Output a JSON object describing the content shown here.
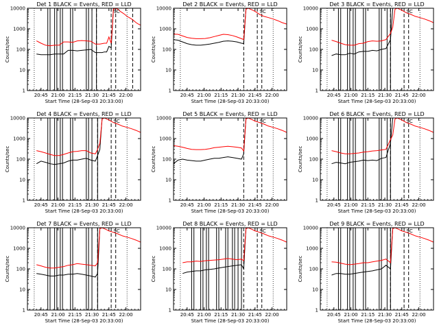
{
  "colors": {
    "events": "#000000",
    "lld": "#ff0000",
    "background": "#ffffff"
  },
  "shared": {
    "ylabel": "Counts/sec",
    "xlabel": "Start Time (28-Sep-03 20:33:00)",
    "x_tick_labels": [
      "20:45",
      "21:00",
      "21:15",
      "21:30",
      "21:45",
      "22:00"
    ],
    "y_tick_labels": [
      "1",
      "10",
      "100",
      "1000",
      "10000"
    ],
    "legend_mark": "SC"
  },
  "chart_data": [
    {
      "type": "line",
      "title": "Det 1 BLACK = Events, RED = LLD",
      "xlabel": "Start Time (28-Sep-03 20:33:00)",
      "ylabel": "Counts/sec",
      "x_unit": "minutes after 20:33:00",
      "xlim": [
        0,
        100
      ],
      "ylim": [
        1,
        10000
      ],
      "log_y": true,
      "x": [
        8,
        12,
        16,
        20,
        24,
        28,
        32,
        36,
        40,
        44,
        48,
        52,
        56,
        60,
        64,
        66,
        68,
        70,
        72,
        74,
        76,
        78,
        80,
        82,
        84,
        86,
        88,
        90,
        92,
        94,
        96,
        98,
        100
      ],
      "series": [
        {
          "name": "Events",
          "color": "#000000",
          "values": [
            60,
            55,
            55,
            55,
            60,
            60,
            60,
            90,
            90,
            85,
            90,
            95,
            100,
            70,
            70,
            70,
            75,
            75,
            140,
            120,
            10000,
            null,
            null,
            null,
            null,
            null,
            null,
            null,
            null,
            null,
            null,
            null,
            null
          ]
        },
        {
          "name": "LLD",
          "color": "#ff0000",
          "values": [
            260,
            200,
            160,
            150,
            160,
            160,
            230,
            230,
            220,
            260,
            270,
            260,
            250,
            180,
            180,
            190,
            200,
            200,
            400,
            200,
            9000,
            10000,
            9000,
            7000,
            6000,
            5000,
            4000,
            3500,
            3000,
            2500,
            2000,
            1700,
            1500
          ]
        }
      ],
      "vlines_solid": [
        18,
        20,
        24,
        26,
        29,
        31,
        38,
        40,
        52,
        54,
        57,
        61
      ],
      "vlines_dashed": [
        61,
        74,
        78,
        93
      ],
      "vlines_dotted": [
        6,
        88
      ]
    },
    {
      "type": "line",
      "title": "Det 2 BLACK = Events, RED = LLD",
      "xlabel": "Start Time (28-Sep-03 20:33:00)",
      "ylabel": "Counts/sec",
      "x_unit": "minutes after 20:33:00",
      "xlim": [
        0,
        100
      ],
      "ylim": [
        1,
        10000
      ],
      "log_y": true,
      "x": [
        0,
        4,
        8,
        12,
        16,
        20,
        24,
        28,
        32,
        36,
        40,
        44,
        48,
        52,
        56,
        60,
        62,
        64,
        66,
        68,
        70,
        72,
        74,
        76,
        80,
        84,
        88,
        92,
        96,
        100
      ],
      "series": [
        {
          "name": "Events",
          "color": "#000000",
          "values": [
            300,
            280,
            230,
            190,
            170,
            160,
            160,
            170,
            180,
            200,
            220,
            250,
            260,
            250,
            230,
            200,
            190,
            10000,
            null,
            null,
            null,
            null,
            null,
            null,
            null,
            null,
            null,
            null,
            null,
            null
          ]
        },
        {
          "name": "LLD",
          "color": "#ff0000",
          "values": [
            550,
            540,
            450,
            380,
            350,
            330,
            330,
            340,
            370,
            420,
            480,
            540,
            520,
            470,
            400,
            330,
            300,
            9000,
            10000,
            9000,
            8000,
            7000,
            6000,
            5000,
            4000,
            3500,
            3000,
            2500,
            2000,
            1700
          ]
        }
      ],
      "vlines_solid": [],
      "vlines_dashed": [
        62,
        74,
        78
      ],
      "vlines_dotted": [
        6,
        88
      ]
    },
    {
      "type": "line",
      "title": "Det 3 BLACK = Events, RED = LLD",
      "xlabel": "Start Time (28-Sep-03 20:33:00)",
      "ylabel": "Counts/sec",
      "x_unit": "minutes after 20:33:00",
      "xlim": [
        0,
        100
      ],
      "ylim": [
        1,
        10000
      ],
      "log_y": true,
      "x": [
        10,
        14,
        18,
        22,
        26,
        30,
        34,
        38,
        42,
        46,
        50,
        54,
        58,
        62,
        64,
        66,
        68,
        70,
        72,
        76,
        80,
        84,
        88,
        92,
        96,
        100
      ],
      "series": [
        {
          "name": "Events",
          "color": "#000000",
          "values": [
            50,
            60,
            55,
            55,
            65,
            60,
            75,
            80,
            80,
            90,
            85,
            100,
            110,
            300,
            10000,
            null,
            null,
            null,
            null,
            null,
            null,
            null,
            null,
            null,
            null,
            null
          ]
        },
        {
          "name": "LLD",
          "color": "#ff0000",
          "values": [
            280,
            240,
            200,
            170,
            160,
            160,
            190,
            200,
            240,
            260,
            250,
            260,
            300,
            600,
            1200,
            9000,
            10000,
            9000,
            8000,
            6000,
            5000,
            4000,
            3500,
            3000,
            2500,
            2000
          ]
        }
      ],
      "vlines_solid": [
        16,
        18,
        24,
        26,
        29,
        31,
        38,
        40,
        52,
        54,
        59,
        62
      ],
      "vlines_dashed": [
        62,
        74,
        78
      ],
      "vlines_dotted": [
        6,
        88
      ]
    },
    {
      "type": "line",
      "title": "Det 4 BLACK = Events, RED = LLD",
      "xlabel": "Start Time (28-Sep-03 20:33:00)",
      "ylabel": "Counts/sec",
      "x_unit": "minutes after 20:33:00",
      "xlim": [
        0,
        100
      ],
      "ylim": [
        1,
        10000
      ],
      "log_y": true,
      "x": [
        8,
        12,
        16,
        20,
        24,
        28,
        32,
        36,
        40,
        44,
        48,
        52,
        56,
        60,
        62,
        64,
        66,
        68,
        70,
        72,
        76,
        80,
        84,
        88,
        92,
        96,
        100
      ],
      "series": [
        {
          "name": "Events",
          "color": "#000000",
          "values": [
            60,
            80,
            70,
            60,
            55,
            60,
            65,
            80,
            90,
            90,
            100,
            110,
            90,
            80,
            150,
            300,
            10000,
            null,
            null,
            null,
            null,
            null,
            null,
            null,
            null,
            null,
            null
          ]
        },
        {
          "name": "LLD",
          "color": "#ff0000",
          "values": [
            260,
            230,
            200,
            170,
            150,
            150,
            170,
            200,
            230,
            240,
            260,
            260,
            200,
            180,
            300,
            600,
            9000,
            10000,
            9000,
            8000,
            6000,
            5000,
            4000,
            3500,
            3000,
            2500,
            2000
          ]
        }
      ],
      "vlines_solid": [
        18,
        20,
        24,
        26,
        29,
        31,
        38,
        40,
        52,
        54,
        57,
        62
      ],
      "vlines_dashed": [
        62,
        74,
        78
      ],
      "vlines_dotted": [
        6,
        88
      ]
    },
    {
      "type": "line",
      "title": "Det 5 BLACK = Events, RED = LLD",
      "xlabel": "Start Time (28-Sep-03 20:33:00)",
      "ylabel": "Counts/sec",
      "x_unit": "minutes after 20:33:00",
      "xlim": [
        0,
        100
      ],
      "ylim": [
        1,
        10000
      ],
      "log_y": true,
      "x": [
        0,
        4,
        8,
        12,
        16,
        20,
        24,
        28,
        32,
        36,
        40,
        44,
        48,
        52,
        56,
        60,
        62,
        64,
        66,
        68,
        70,
        72,
        76,
        80,
        84,
        88,
        92,
        96,
        100
      ],
      "series": [
        {
          "name": "Events",
          "color": "#000000",
          "values": [
            60,
            90,
            100,
            90,
            85,
            80,
            80,
            90,
            100,
            110,
            110,
            120,
            130,
            120,
            110,
            100,
            180,
            10000,
            null,
            null,
            null,
            null,
            null,
            null,
            null,
            null,
            null,
            null,
            null
          ]
        },
        {
          "name": "LLD",
          "color": "#ff0000",
          "values": [
            450,
            420,
            380,
            330,
            300,
            290,
            290,
            300,
            320,
            360,
            380,
            400,
            420,
            400,
            380,
            350,
            250,
            9000,
            10000,
            9000,
            8000,
            7000,
            6000,
            5000,
            4000,
            3500,
            3000,
            2500,
            2000
          ]
        }
      ],
      "vlines_solid": [],
      "vlines_dashed": [
        62,
        74,
        78
      ],
      "vlines_dotted": [
        6,
        88
      ]
    },
    {
      "type": "line",
      "title": "Det 6 BLACK = Events, RED = LLD",
      "xlabel": "Start Time (28-Sep-03 20:33:00)",
      "ylabel": "Counts/sec",
      "x_unit": "minutes after 20:33:00",
      "xlim": [
        0,
        100
      ],
      "ylim": [
        1,
        10000
      ],
      "log_y": true,
      "x": [
        10,
        14,
        18,
        22,
        26,
        30,
        34,
        38,
        42,
        46,
        50,
        54,
        58,
        62,
        64,
        66,
        68,
        70,
        72,
        76,
        80,
        84,
        88,
        92,
        96,
        100
      ],
      "series": [
        {
          "name": "Events",
          "color": "#000000",
          "values": [
            60,
            70,
            65,
            60,
            70,
            75,
            80,
            90,
            85,
            90,
            85,
            110,
            120,
            600,
            10000,
            null,
            null,
            null,
            null,
            null,
            null,
            null,
            null,
            null,
            null,
            null
          ]
        },
        {
          "name": "LLD",
          "color": "#ff0000",
          "values": [
            260,
            230,
            200,
            180,
            180,
            190,
            200,
            220,
            230,
            250,
            260,
            280,
            300,
            900,
            1500,
            9000,
            10000,
            9000,
            8000,
            6000,
            5000,
            4000,
            3500,
            3000,
            2500,
            2000
          ]
        }
      ],
      "vlines_solid": [
        16,
        18,
        24,
        26,
        29,
        31,
        38,
        40,
        52,
        54,
        59,
        62
      ],
      "vlines_dashed": [
        62,
        74,
        78
      ],
      "vlines_dotted": [
        6,
        88
      ]
    },
    {
      "type": "line",
      "title": "Det 7 BLACK = Events, RED = LLD",
      "xlabel": "Start Time (28-Sep-03 20:33:00)",
      "ylabel": "Counts/sec",
      "x_unit": "minutes after 20:33:00",
      "xlim": [
        0,
        100
      ],
      "ylim": [
        1,
        10000
      ],
      "log_y": true,
      "x": [
        8,
        12,
        16,
        20,
        24,
        28,
        32,
        36,
        40,
        44,
        48,
        52,
        56,
        60,
        62,
        64,
        66,
        68,
        70,
        72,
        76,
        80,
        84,
        88,
        92,
        96,
        100
      ],
      "series": [
        {
          "name": "Events",
          "color": "#000000",
          "values": [
            60,
            55,
            50,
            45,
            45,
            50,
            50,
            55,
            55,
            60,
            55,
            50,
            45,
            40,
            60,
            10000,
            null,
            null,
            null,
            null,
            null,
            null,
            null,
            null,
            null,
            null,
            null
          ]
        },
        {
          "name": "LLD",
          "color": "#ff0000",
          "values": [
            160,
            140,
            120,
            110,
            110,
            120,
            130,
            150,
            160,
            180,
            170,
            160,
            150,
            140,
            200,
            9000,
            10000,
            9000,
            8000,
            7000,
            6000,
            5000,
            4000,
            3500,
            3000,
            2500,
            2000
          ]
        }
      ],
      "vlines_solid": [
        18,
        20,
        24,
        26,
        29,
        31,
        38,
        40,
        52,
        54,
        57,
        62
      ],
      "vlines_dashed": [
        62,
        74,
        78
      ],
      "vlines_dotted": [
        6,
        88
      ]
    },
    {
      "type": "line",
      "title": "Det 8 BLACK = Events, RED = LLD",
      "xlabel": "Start Time (28-Sep-03 20:33:00)",
      "ylabel": "Counts/sec",
      "x_unit": "minutes after 20:33:00",
      "xlim": [
        0,
        100
      ],
      "ylim": [
        1,
        10000
      ],
      "log_y": true,
      "x": [
        8,
        12,
        16,
        20,
        24,
        28,
        32,
        36,
        40,
        44,
        48,
        52,
        56,
        60,
        62,
        64,
        66,
        68,
        70,
        72,
        76,
        80,
        84,
        88,
        92,
        96,
        100
      ],
      "series": [
        {
          "name": "Events",
          "color": "#000000",
          "values": [
            60,
            70,
            75,
            80,
            80,
            90,
            95,
            100,
            110,
            120,
            130,
            140,
            150,
            160,
            100,
            10000,
            null,
            null,
            null,
            null,
            null,
            null,
            null,
            null,
            null,
            null,
            null
          ]
        },
        {
          "name": "LLD",
          "color": "#ff0000",
          "values": [
            200,
            220,
            220,
            240,
            230,
            250,
            260,
            270,
            280,
            300,
            320,
            300,
            280,
            300,
            250,
            9000,
            10000,
            9000,
            8000,
            7000,
            6000,
            5000,
            4000,
            3500,
            3000,
            2500,
            2000
          ]
        }
      ],
      "vlines_solid": [
        16,
        18,
        24,
        26,
        29,
        31,
        38,
        40,
        46,
        48,
        52,
        54,
        57,
        60
      ],
      "vlines_dashed": [
        62,
        74,
        78
      ],
      "vlines_dotted": [
        6,
        88
      ]
    },
    {
      "type": "line",
      "title": "Det 9 BLACK = Events, RED = LLD",
      "xlabel": "Start Time (28-Sep-03 20:33:00)",
      "ylabel": "Counts/sec",
      "x_unit": "minutes after 20:33:00",
      "xlim": [
        0,
        100
      ],
      "ylim": [
        1,
        10000
      ],
      "log_y": true,
      "x": [
        10,
        14,
        18,
        22,
        26,
        30,
        34,
        38,
        42,
        46,
        50,
        54,
        58,
        62,
        64,
        66,
        68,
        70,
        72,
        76,
        80,
        84,
        88,
        92,
        96,
        100
      ],
      "series": [
        {
          "name": "Events",
          "color": "#000000",
          "values": [
            50,
            60,
            60,
            55,
            55,
            60,
            65,
            70,
            75,
            80,
            90,
            100,
            150,
            100,
            10000,
            null,
            null,
            null,
            null,
            null,
            null,
            null,
            null,
            null,
            null,
            null
          ]
        },
        {
          "name": "LLD",
          "color": "#ff0000",
          "values": [
            220,
            210,
            190,
            170,
            160,
            170,
            180,
            200,
            200,
            220,
            240,
            260,
            300,
            200,
            9000,
            10000,
            9000,
            8000,
            7000,
            6000,
            5000,
            4000,
            3500,
            3000,
            2500,
            2000
          ]
        }
      ],
      "vlines_solid": [
        16,
        18,
        24,
        26,
        29,
        31,
        38,
        40,
        52,
        54,
        59,
        62
      ],
      "vlines_dashed": [
        62,
        74,
        78
      ],
      "vlines_dotted": [
        6,
        88
      ]
    }
  ]
}
